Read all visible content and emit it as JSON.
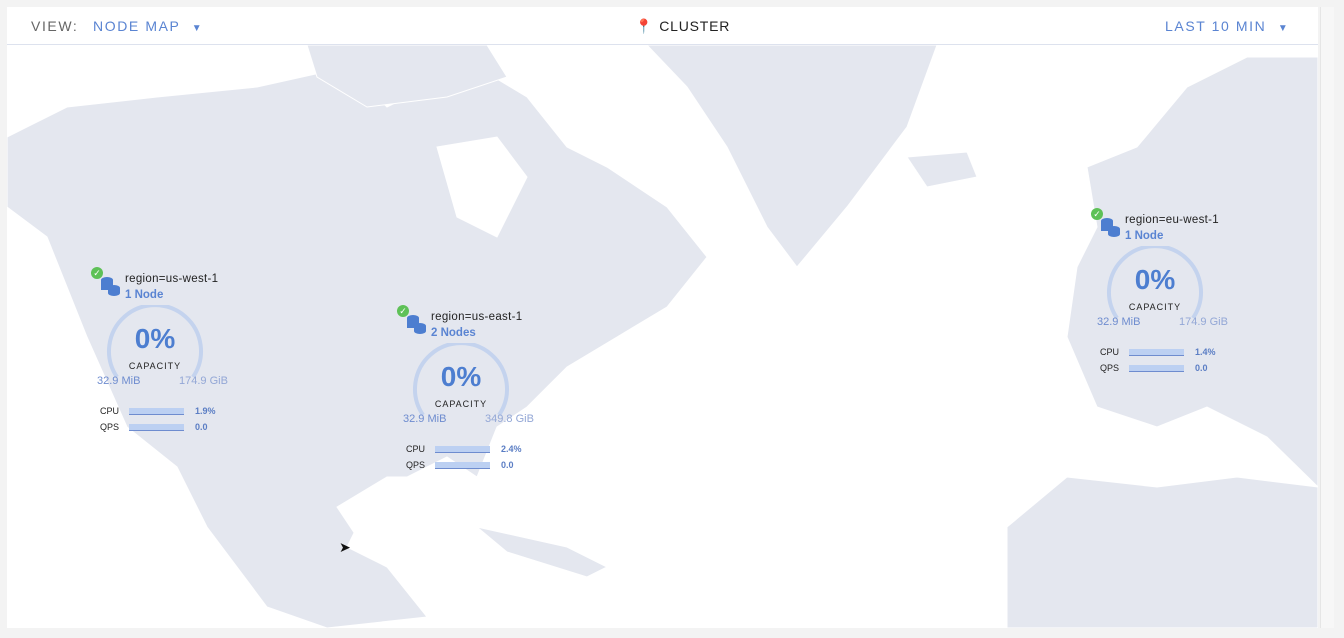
{
  "header": {
    "view_label": "VIEW:",
    "view_value": "NODE MAP",
    "center_icon": "map-pin-icon",
    "center_label": "CLUSTER",
    "time_range": "LAST 10 MIN"
  },
  "colors": {
    "accent": "#4d7ed0",
    "healthy": "#5ec157",
    "land": "#e4e7ef"
  },
  "regions": [
    {
      "name": "region=us-west-1",
      "nodes": "1 Node",
      "capacity_pct": "0%",
      "capacity_label": "CAPACITY",
      "used": "32.9 MiB",
      "total": "174.9 GiB",
      "cpu_label": "CPU",
      "cpu": "1.9%",
      "qps_label": "QPS",
      "qps": "0.0",
      "status": "healthy"
    },
    {
      "name": "region=us-east-1",
      "nodes": "2 Nodes",
      "capacity_pct": "0%",
      "capacity_label": "CAPACITY",
      "used": "32.9 MiB",
      "total": "349.8 GiB",
      "cpu_label": "CPU",
      "cpu": "2.4%",
      "qps_label": "QPS",
      "qps": "0.0",
      "status": "healthy"
    },
    {
      "name": "region=eu-west-1",
      "nodes": "1 Node",
      "capacity_pct": "0%",
      "capacity_label": "CAPACITY",
      "used": "32.9 MiB",
      "total": "174.9 GiB",
      "cpu_label": "CPU",
      "cpu": "1.4%",
      "qps_label": "QPS",
      "qps": "0.0",
      "status": "healthy"
    }
  ]
}
